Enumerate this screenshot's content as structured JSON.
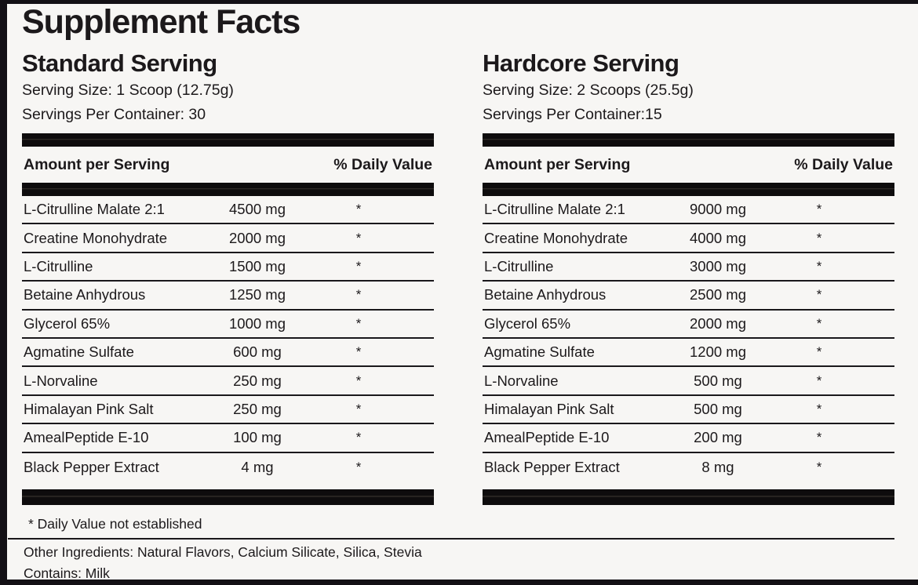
{
  "label": {
    "title": "Supplement Facts",
    "footnote": "* Daily Value not established",
    "other_ingredients": "Other Ingredients: Natural Flavors, Calcium Silicate, Silica, Stevia",
    "contains": "Contains: Milk"
  },
  "colors": {
    "ink": "#131015",
    "background": "#f7f6f4",
    "bar": "#0e0c0d"
  },
  "columns": [
    {
      "heading": "Standard Serving",
      "serving_size": "Serving Size: 1 Scoop (12.75g)",
      "servings_per_container": "Servings Per Container: 30",
      "table_header": {
        "amount": "Amount per Serving",
        "daily_value": "% Daily Value"
      },
      "rows": [
        {
          "name": "L-Citrulline Malate 2:1",
          "amount": "4500 mg",
          "dv": "*"
        },
        {
          "name": "Creatine Monohydrate",
          "amount": "2000 mg",
          "dv": "*"
        },
        {
          "name": "L-Citrulline",
          "amount": "1500 mg",
          "dv": "*"
        },
        {
          "name": "Betaine Anhydrous",
          "amount": "1250 mg",
          "dv": "*"
        },
        {
          "name": "Glycerol 65%",
          "amount": "1000 mg",
          "dv": "*"
        },
        {
          "name": "Agmatine Sulfate",
          "amount": "600 mg",
          "dv": "*"
        },
        {
          "name": "L-Norvaline",
          "amount": "250 mg",
          "dv": "*"
        },
        {
          "name": "Himalayan Pink Salt",
          "amount": "250 mg",
          "dv": "*"
        },
        {
          "name": "AmealPeptide E-10",
          "amount": "100 mg",
          "dv": "*"
        },
        {
          "name": "Black Pepper Extract",
          "amount": "4 mg",
          "dv": "*"
        }
      ]
    },
    {
      "heading": "Hardcore Serving",
      "serving_size": "Serving Size: 2 Scoops (25.5g)",
      "servings_per_container": "Servings Per Container:15",
      "table_header": {
        "amount": "Amount per Serving",
        "daily_value": "% Daily Value"
      },
      "rows": [
        {
          "name": "L-Citrulline Malate 2:1",
          "amount": "9000 mg",
          "dv": "*"
        },
        {
          "name": "Creatine Monohydrate",
          "amount": "4000 mg",
          "dv": "*"
        },
        {
          "name": "L-Citrulline",
          "amount": "3000 mg",
          "dv": "*"
        },
        {
          "name": "Betaine Anhydrous",
          "amount": "2500 mg",
          "dv": "*"
        },
        {
          "name": "Glycerol 65%",
          "amount": "2000 mg",
          "dv": "*"
        },
        {
          "name": "Agmatine Sulfate",
          "amount": "1200 mg",
          "dv": "*"
        },
        {
          "name": "L-Norvaline",
          "amount": "500 mg",
          "dv": "*"
        },
        {
          "name": "Himalayan Pink Salt",
          "amount": "500 mg",
          "dv": "*"
        },
        {
          "name": "AmealPeptide E-10",
          "amount": "200 mg",
          "dv": "*"
        },
        {
          "name": "Black Pepper Extract",
          "amount": "8 mg",
          "dv": "*"
        }
      ]
    }
  ]
}
